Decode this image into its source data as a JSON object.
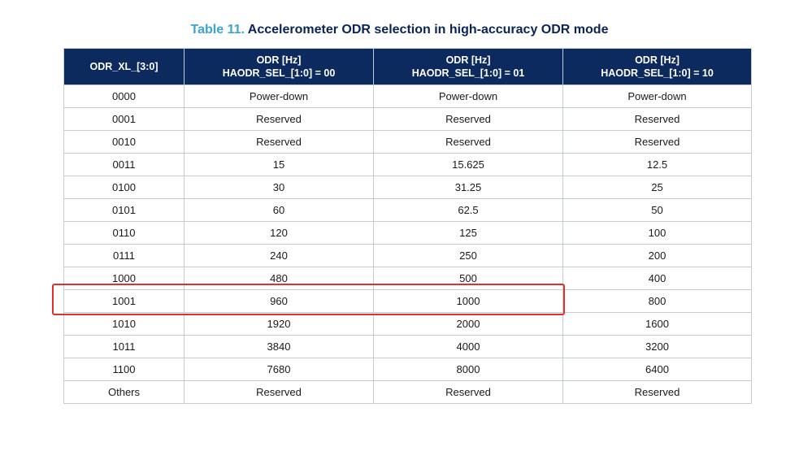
{
  "title": {
    "label": "Table 11.",
    "text": "Accelerometer ODR selection in high-accuracy ODR mode"
  },
  "table": {
    "header": [
      [
        "ODR_XL_[3:0]"
      ],
      [
        "ODR [Hz]",
        "HAODR_SEL_[1:0] = 00"
      ],
      [
        "ODR [Hz]",
        "HAODR_SEL_[1:0] = 01"
      ],
      [
        "ODR [Hz]",
        "HAODR_SEL_[1:0] = 10"
      ]
    ],
    "rows": [
      [
        "0000",
        "Power-down",
        "Power-down",
        "Power-down"
      ],
      [
        "0001",
        "Reserved",
        "Reserved",
        "Reserved"
      ],
      [
        "0010",
        "Reserved",
        "Reserved",
        "Reserved"
      ],
      [
        "0011",
        "15",
        "15.625",
        "12.5"
      ],
      [
        "0100",
        "30",
        "31.25",
        "25"
      ],
      [
        "0101",
        "60",
        "62.5",
        "50"
      ],
      [
        "0110",
        "120",
        "125",
        "100"
      ],
      [
        "0111",
        "240",
        "250",
        "200"
      ],
      [
        "1000",
        "480",
        "500",
        "400"
      ],
      [
        "1001",
        "960",
        "1000",
        "800"
      ],
      [
        "1010",
        "1920",
        "2000",
        "1600"
      ],
      [
        "1011",
        "3840",
        "4000",
        "3200"
      ],
      [
        "1100",
        "7680",
        "8000",
        "6400"
      ],
      [
        "Others",
        "Reserved",
        "Reserved",
        "Reserved"
      ]
    ]
  }
}
